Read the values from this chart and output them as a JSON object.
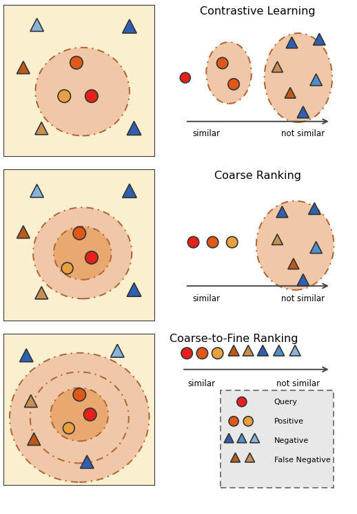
{
  "colors": {
    "query_red": "#E8201A",
    "pos_orange_dark": "#E05818",
    "pos_orange_light": "#E8A040",
    "neg_blue_dark": "#3060B0",
    "neg_blue_mid": "#5090C8",
    "neg_blue_light": "#88B4DC",
    "false_neg_dark": "#C05818",
    "false_neg_light": "#C89050",
    "ellipse_outer": "#F0C8A8",
    "ellipse_inner": "#E8A870",
    "ellipse_edge": "#B06838",
    "panel_bg": "#FAF0D0",
    "legend_bg": "#E8E8E8",
    "border": "#333333",
    "arrow": "#444444"
  },
  "titles": [
    "Contrastive Learning",
    "Coarse Ranking",
    "Coarse-to-Fine Ranking"
  ],
  "figsize": [
    5.18,
    7.44
  ],
  "dpi": 100
}
